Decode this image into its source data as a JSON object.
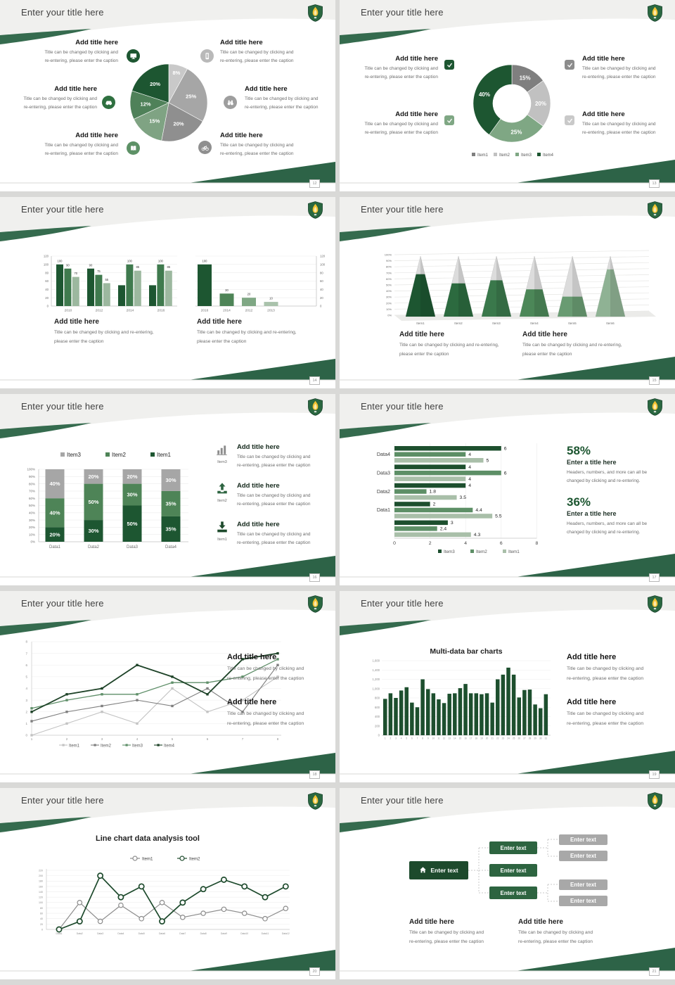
{
  "chrome": {
    "title": "Enter your title here",
    "logo": "shield-flame-logo",
    "accent_green": "#2d6347",
    "dark_green": "#1d5631",
    "slide_background": "#f0f0ee"
  },
  "strings": {
    "add_title": "Add title here",
    "caption_line1": "Title can be changed by clicking and",
    "caption_line2": "re-entering, please enter the caption",
    "caption_wide1": "Title can be changed by clicking and re-entering,",
    "caption_wide2": "please enter the caption",
    "enter_title": "Enter a title here",
    "stat_line1": "Headers, numbers, and more can all be",
    "stat_line2": "changed by clicking and re-entering.",
    "enter_text": "Enter text"
  },
  "slides": [
    {
      "page": "12",
      "name": "pie-chart-infographic",
      "icons": [
        "monitor-icon",
        "car-icon",
        "book-icon",
        "smartphone-icon",
        "binoculars-icon",
        "bicycle-icon"
      ]
    },
    {
      "page": "13",
      "name": "donut-chart-infographic",
      "icons": [
        "checkbox-icon",
        "checkbox-icon",
        "checkbox-icon",
        "checkbox-icon"
      ]
    },
    {
      "page": "14",
      "name": "dual-bar-charts"
    },
    {
      "page": "15",
      "name": "pyramid-chart"
    },
    {
      "page": "16",
      "name": "stacked-bar-chart",
      "side_items": [
        "Item3",
        "Item2",
        "Item1"
      ],
      "side_icons": [
        "bar-chart-icon",
        "upload-icon",
        "download-icon"
      ]
    },
    {
      "page": "17",
      "name": "horizontal-bar-chart",
      "stats": [
        {
          "value": "58%"
        },
        {
          "value": "36%"
        }
      ]
    },
    {
      "page": "18",
      "name": "line-chart"
    },
    {
      "page": "19",
      "name": "multi-data-bar-chart"
    },
    {
      "page": "20",
      "name": "line-chart-analysis"
    },
    {
      "page": "21",
      "name": "org-diagram"
    }
  ],
  "chart_data": [
    {
      "type": "pie",
      "values": [
        8,
        25,
        20,
        15,
        12,
        20
      ],
      "labels": [
        "8%",
        "25%",
        "20%",
        "15%",
        "12%",
        "20%"
      ],
      "colors": [
        "#c9c9c9",
        "#a6a6a6",
        "#8f8f8f",
        "#7fa383",
        "#4f8159",
        "#1d5631"
      ],
      "start": "top",
      "direction": "clockwise"
    },
    {
      "type": "donut",
      "values": [
        15,
        20,
        25,
        40
      ],
      "labels": [
        "15%",
        "20%",
        "25%",
        "40%"
      ],
      "colors": [
        "#7f7f7f",
        "#c1c1c1",
        "#7fa784",
        "#1d5631"
      ],
      "legend": [
        "Item1",
        "Item2",
        "Item3",
        "Item4"
      ]
    },
    {
      "type": "grouped-bar-pair",
      "left": {
        "categories": [
          "2010",
          "2012",
          "2014",
          "2016"
        ],
        "series": [
          [
            100,
            90,
            50,
            50
          ],
          [
            90,
            75,
            100,
            100
          ],
          [
            70,
            55,
            85,
            85
          ]
        ],
        "series_colors": [
          "#1d5631",
          "#3f7a4e",
          "#9cb89f"
        ],
        "data_labels": [
          [
            100,
            90,
            null,
            null
          ],
          [
            90,
            75,
            100,
            100
          ],
          [
            70,
            55,
            85,
            85
          ]
        ],
        "ylim": [
          0,
          120
        ],
        "yticks": [
          0,
          20,
          40,
          60,
          80,
          100,
          120
        ]
      },
      "right": {
        "categories": [
          "2016",
          "2014",
          "2012",
          "2013"
        ],
        "values": [
          100,
          30,
          20,
          10
        ],
        "colors": [
          "#1d5631",
          "#4e8457",
          "#7fa784",
          "#a9c2ab"
        ],
        "ylim": [
          0,
          120
        ],
        "yticks": [
          0,
          20,
          40,
          60,
          80,
          100,
          120
        ],
        "y_axis_side": "right"
      }
    },
    {
      "type": "pyramid-3d",
      "categories": [
        "Item1",
        "Item2",
        "Item3",
        "Item4",
        "Item5",
        "Item6"
      ],
      "values_pct": [
        70,
        55,
        60,
        45,
        33,
        78
      ],
      "colors": [
        "#1d5631",
        "#2c6a3f",
        "#3a784b",
        "#4c8758",
        "#699b72",
        "#8fb294"
      ],
      "ylim": [
        0,
        100
      ]
    },
    {
      "type": "stacked-bar-100",
      "categories": [
        "Data1",
        "Data2",
        "Data3",
        "Data4"
      ],
      "series": [
        {
          "name": "Item1",
          "color": "#1d5631",
          "values": [
            20,
            30,
            50,
            35
          ]
        },
        {
          "name": "Item2",
          "color": "#4e8457",
          "values": [
            40,
            50,
            30,
            35
          ]
        },
        {
          "name": "Item3",
          "color": "#a6a6a6",
          "values": [
            40,
            20,
            20,
            30
          ]
        }
      ],
      "legend_order": [
        "Item3",
        "Item2",
        "Item1"
      ],
      "yticks_pct": [
        0,
        10,
        20,
        30,
        40,
        50,
        60,
        70,
        80,
        90,
        100
      ]
    },
    {
      "type": "grouped-hbar",
      "series_names": [
        "Item3",
        "Item2",
        "Item1"
      ],
      "series_colors": [
        "#1d4f2e",
        "#5d8f66",
        "#a9bfa9"
      ],
      "groups": [
        {
          "label": "Data4",
          "values": [
            6,
            4,
            5
          ]
        },
        {
          "label": "Data3",
          "values": [
            4,
            6,
            4
          ]
        },
        {
          "label": "Data2",
          "values": [
            4,
            1.8,
            3.5
          ]
        },
        {
          "label": "Data1",
          "values": [
            2,
            4.4,
            5.5
          ]
        },
        {
          "label": "",
          "values": [
            3,
            2.4,
            4.3
          ]
        }
      ],
      "xticks": [
        0,
        2,
        4,
        6,
        8
      ],
      "xlim": [
        0,
        8
      ]
    },
    {
      "type": "line",
      "x": [
        1,
        2,
        3,
        4,
        5,
        6,
        7,
        8
      ],
      "ylim": [
        0,
        8
      ],
      "yticks": [
        0,
        1,
        2,
        3,
        4,
        5,
        6,
        7,
        8
      ],
      "series": [
        {
          "name": "Item1",
          "color": "#c3c3c3",
          "values": [
            0,
            1,
            2,
            1,
            4,
            2,
            3,
            5
          ]
        },
        {
          "name": "Item2",
          "color": "#7f7f7f",
          "values": [
            1.2,
            2,
            2.5,
            3,
            2.5,
            4,
            2,
            6
          ]
        },
        {
          "name": "Item3",
          "color": "#5f8f69",
          "values": [
            2.3,
            3,
            3.5,
            3.5,
            4.5,
            4.5,
            5,
            6.5
          ]
        },
        {
          "name": "Item4",
          "color": "#1d4227",
          "values": [
            2,
            3.5,
            4,
            6,
            5,
            3.5,
            6.5,
            7
          ]
        }
      ]
    },
    {
      "type": "bar",
      "title": "Multi-data bar charts",
      "color": "#1d4f2e",
      "ylim": [
        0,
        1600
      ],
      "ytick_labels": [
        "0",
        "200",
        "400",
        "600",
        "800",
        "1,000",
        "1,200",
        "1,400",
        "1,600"
      ],
      "categories": [
        "1",
        "2",
        "3",
        "4",
        "5",
        "6",
        "7",
        "8",
        "9",
        "10",
        "11",
        "12",
        "13",
        "14",
        "15",
        "16",
        "17",
        "18",
        "19",
        "20",
        "21",
        "22",
        "23",
        "24",
        "25",
        "26",
        "27",
        "28",
        "29",
        "30",
        "31"
      ],
      "values": [
        780,
        900,
        800,
        960,
        1030,
        700,
        600,
        1200,
        990,
        900,
        770,
        690,
        890,
        900,
        1010,
        1100,
        900,
        900,
        880,
        900,
        700,
        1200,
        1300,
        1450,
        1300,
        810,
        970,
        980,
        660,
        580,
        880
      ]
    },
    {
      "type": "line",
      "title": "Line chart data analysis tool",
      "ylim": [
        0,
        220
      ],
      "ytick_step": 20,
      "categories": [
        "Data1",
        "Data2",
        "Data3",
        "Data4",
        "Data5",
        "Data6",
        "Data7",
        "Data8",
        "Data9",
        "Data10",
        "Data11",
        "Data12"
      ],
      "series": [
        {
          "name": "Item1",
          "color": "#8c8c8c",
          "values": [
            0,
            100,
            30,
            90,
            40,
            100,
            45,
            60,
            75,
            60,
            40,
            78
          ]
        },
        {
          "name": "Item2",
          "color": "#1d4a2c",
          "values": [
            0,
            30,
            200,
            120,
            160,
            30,
            100,
            150,
            185,
            160,
            120,
            160
          ]
        }
      ]
    },
    {
      "type": "org-diagram",
      "root": {
        "label": "Enter text",
        "icon": "home-icon"
      },
      "mid": [
        "Enter text",
        "Enter text",
        "Enter text"
      ],
      "leaves": [
        "Enter text",
        "Enter text",
        "Enter text",
        "Enter text"
      ]
    }
  ]
}
